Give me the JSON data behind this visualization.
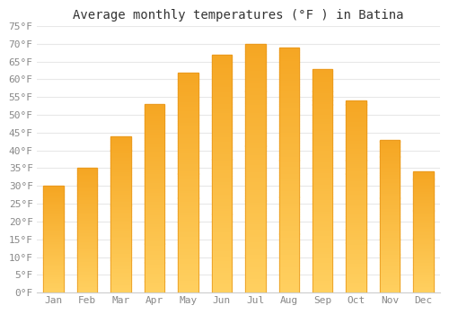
{
  "title": "Average monthly temperatures (°F ) in Batina",
  "months": [
    "Jan",
    "Feb",
    "Mar",
    "Apr",
    "May",
    "Jun",
    "Jul",
    "Aug",
    "Sep",
    "Oct",
    "Nov",
    "Dec"
  ],
  "values": [
    30,
    35,
    44,
    53,
    62,
    67,
    70,
    69,
    63,
    54,
    43,
    34
  ],
  "bar_color_top": "#F5A623",
  "bar_color_bottom": "#FFD060",
  "bar_edge_color": "#E8961A",
  "ylim": [
    0,
    75
  ],
  "yticks": [
    0,
    5,
    10,
    15,
    20,
    25,
    30,
    35,
    40,
    45,
    50,
    55,
    60,
    65,
    70,
    75
  ],
  "ytick_labels": [
    "0°F",
    "5°F",
    "10°F",
    "15°F",
    "20°F",
    "25°F",
    "30°F",
    "35°F",
    "40°F",
    "45°F",
    "50°F",
    "55°F",
    "60°F",
    "65°F",
    "70°F",
    "75°F"
  ],
  "background_color": "#ffffff",
  "grid_color": "#e8e8e8",
  "title_fontsize": 10,
  "tick_fontsize": 8,
  "font_family": "monospace"
}
